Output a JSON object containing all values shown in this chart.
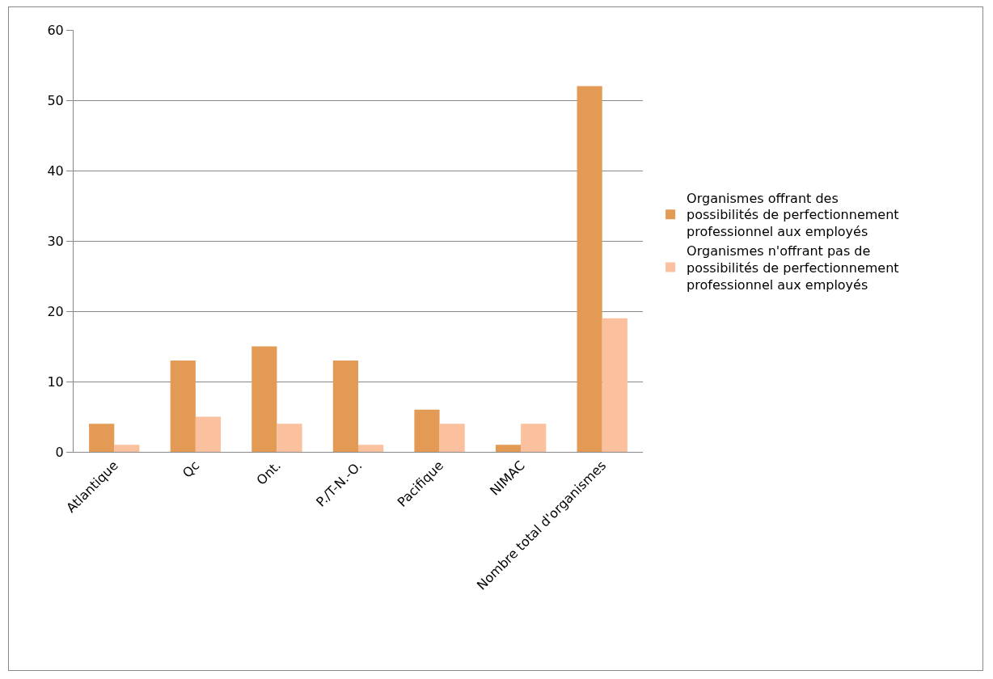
{
  "chart_data": {
    "type": "bar",
    "categories": [
      "Atlantique",
      "Qc",
      "Ont.",
      "P./T-N.-O.",
      "Pacifique",
      "NIMAC",
      "Nombre total d'organismes"
    ],
    "series": [
      {
        "name": "Organismes offrant des possibilités de perfectionnement professionnel aux employés",
        "color": "#e39a55",
        "values": [
          4,
          13,
          15,
          13,
          6,
          1,
          52
        ]
      },
      {
        "name": "Organismes n'offrant pas de possibilités de perfectionnement professionnel aux employés",
        "color": "#fbc09d",
        "values": [
          1,
          5,
          4,
          1,
          4,
          4,
          19
        ]
      }
    ],
    "ylim": [
      0,
      60
    ],
    "yticks": [
      0,
      10,
      20,
      30,
      40,
      50,
      60
    ],
    "grid": "y",
    "legend": "right"
  }
}
